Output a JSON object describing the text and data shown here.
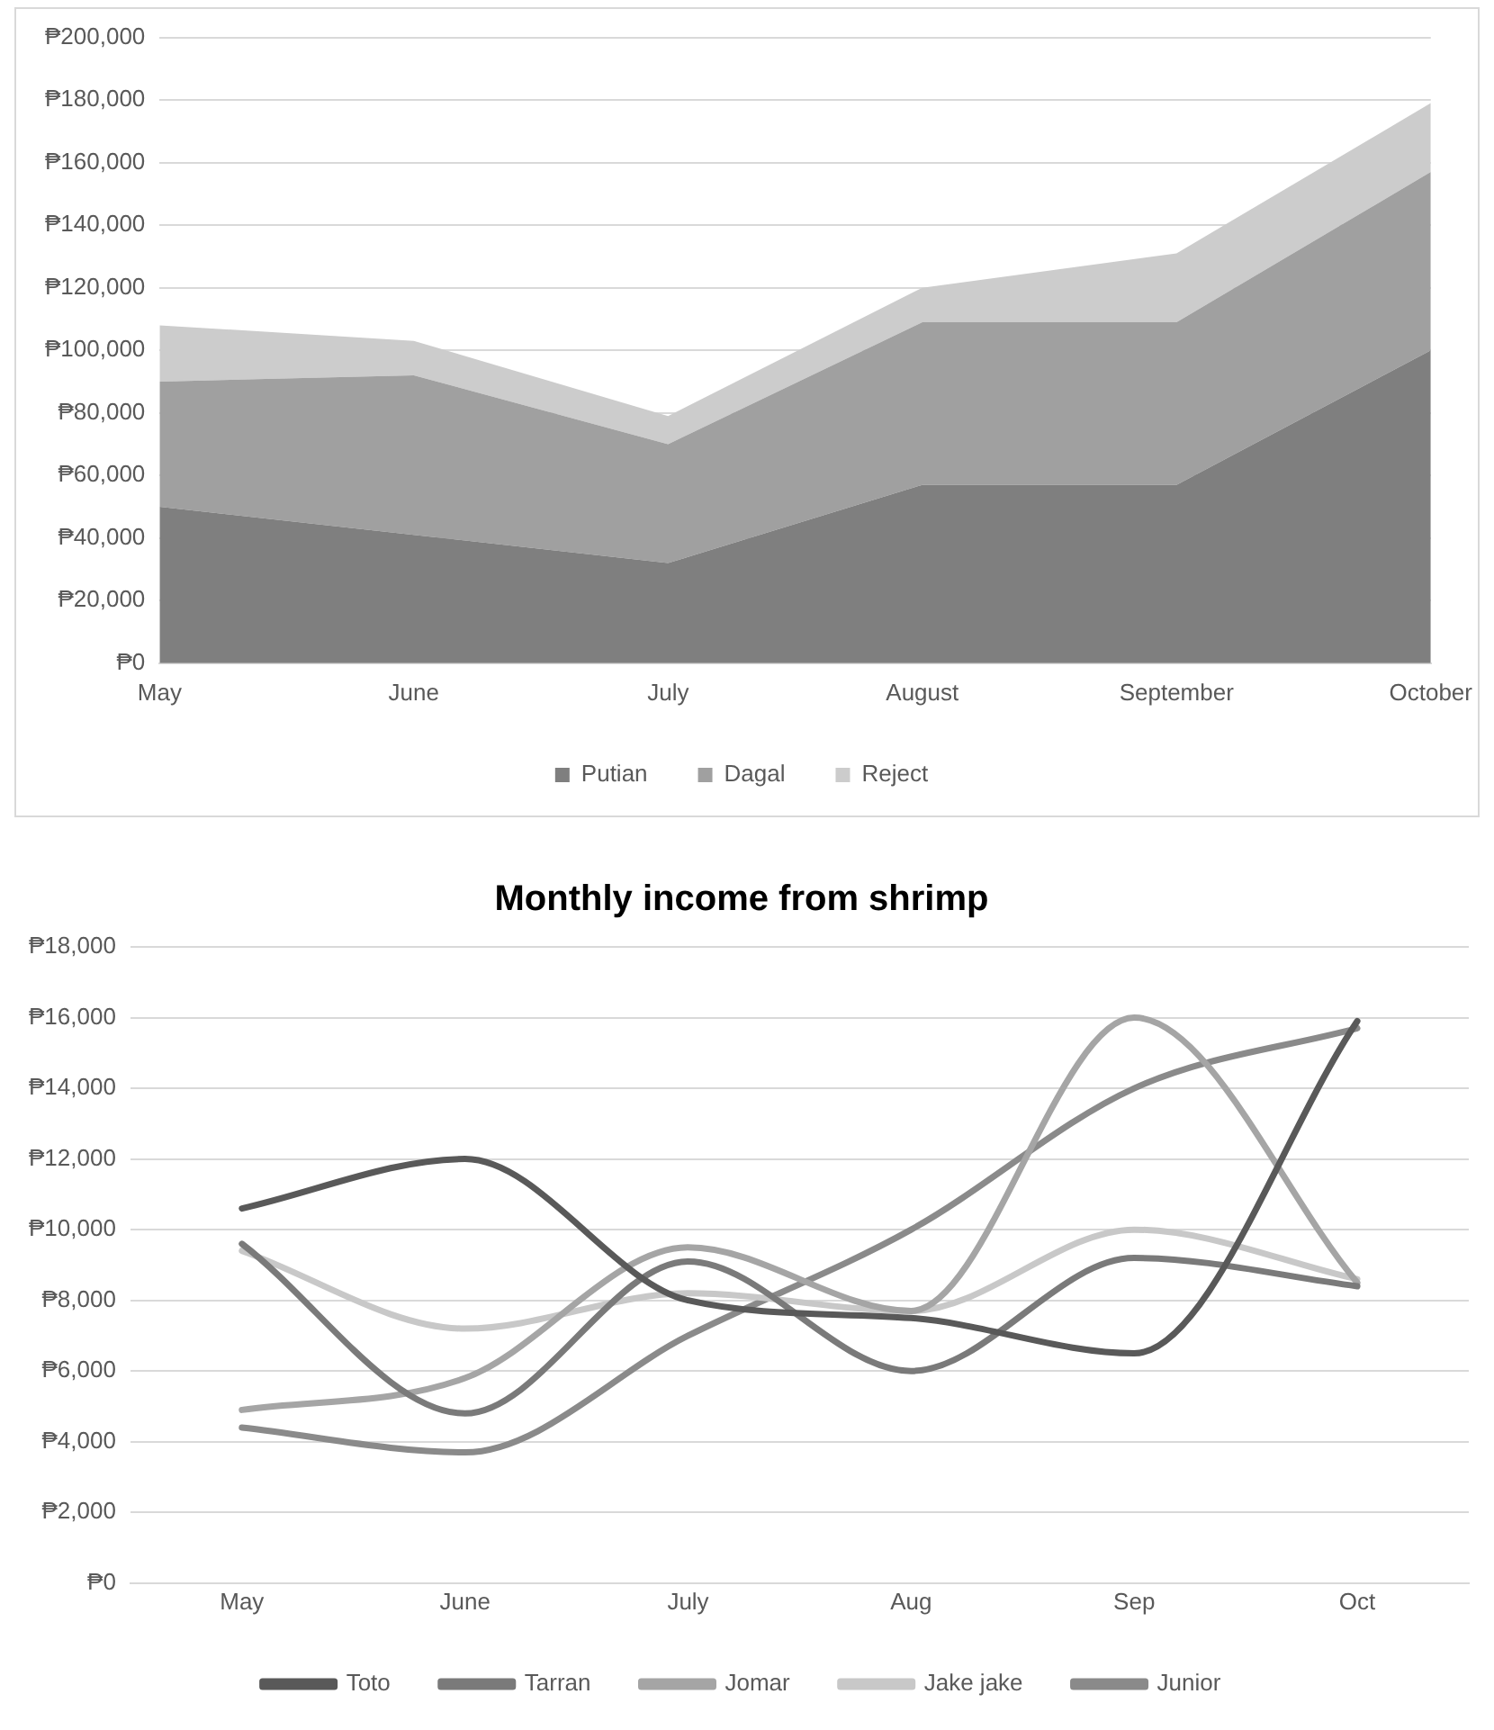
{
  "chart_data": [
    {
      "type": "area",
      "stacked": true,
      "categories": [
        "May",
        "June",
        "July",
        "August",
        "September",
        "October"
      ],
      "series": [
        {
          "name": "Putian",
          "color": "#7f7f7f",
          "values": [
            50000,
            41000,
            32000,
            57000,
            57000,
            100000
          ]
        },
        {
          "name": "Dagal",
          "color": "#a0a0a0",
          "values": [
            40000,
            51000,
            38000,
            52000,
            52000,
            57000
          ]
        },
        {
          "name": "Reject",
          "color": "#cccccc",
          "values": [
            18000,
            11000,
            9000,
            11000,
            22000,
            22000
          ]
        }
      ],
      "ylim": [
        0,
        200000
      ],
      "yticks": [
        {
          "value": 0,
          "label": "₱0"
        },
        {
          "value": 20000,
          "label": "₱20,000"
        },
        {
          "value": 40000,
          "label": "₱40,000"
        },
        {
          "value": 60000,
          "label": "₱60,000"
        },
        {
          "value": 80000,
          "label": "₱80,000"
        },
        {
          "value": 100000,
          "label": "₱100,000"
        },
        {
          "value": 120000,
          "label": "₱120,000"
        },
        {
          "value": 140000,
          "label": "₱140,000"
        },
        {
          "value": 160000,
          "label": "₱160,000"
        },
        {
          "value": 180000,
          "label": "₱180,000"
        },
        {
          "value": 200000,
          "label": "₱200,000"
        }
      ],
      "grid": "y",
      "legend": "bottom"
    },
    {
      "type": "line",
      "title": "Monthly income from shrimp",
      "categories": [
        "May",
        "June",
        "July",
        "Aug",
        "Sep",
        "Oct"
      ],
      "series": [
        {
          "name": "Toto",
          "color": "#595959",
          "values": [
            10600,
            12000,
            8000,
            7500,
            6500,
            15900
          ]
        },
        {
          "name": "Tarran",
          "color": "#7a7a7a",
          "values": [
            9600,
            4800,
            9100,
            6000,
            9200,
            8400
          ]
        },
        {
          "name": "Jomar",
          "color": "#a5a5a5",
          "values": [
            4900,
            5800,
            9500,
            7700,
            16000,
            8500
          ]
        },
        {
          "name": "Jake jake",
          "color": "#c8c8c8",
          "values": [
            9400,
            7200,
            8200,
            7700,
            10000,
            8600
          ]
        },
        {
          "name": "Junior",
          "color": "#8a8a8a",
          "values": [
            4400,
            3700,
            7000,
            10000,
            14000,
            15700
          ]
        }
      ],
      "ylim": [
        0,
        18000
      ],
      "yticks": [
        {
          "value": 0,
          "label": "₱0"
        },
        {
          "value": 2000,
          "label": "₱2,000"
        },
        {
          "value": 4000,
          "label": "₱4,000"
        },
        {
          "value": 6000,
          "label": "₱6,000"
        },
        {
          "value": 8000,
          "label": "₱8,000"
        },
        {
          "value": 10000,
          "label": "₱10,000"
        },
        {
          "value": 12000,
          "label": "₱12,000"
        },
        {
          "value": 14000,
          "label": "₱14,000"
        },
        {
          "value": 16000,
          "label": "₱16,000"
        },
        {
          "value": 18000,
          "label": "₱18,000"
        }
      ],
      "grid": "y",
      "legend": "bottom",
      "marker": "none"
    }
  ]
}
